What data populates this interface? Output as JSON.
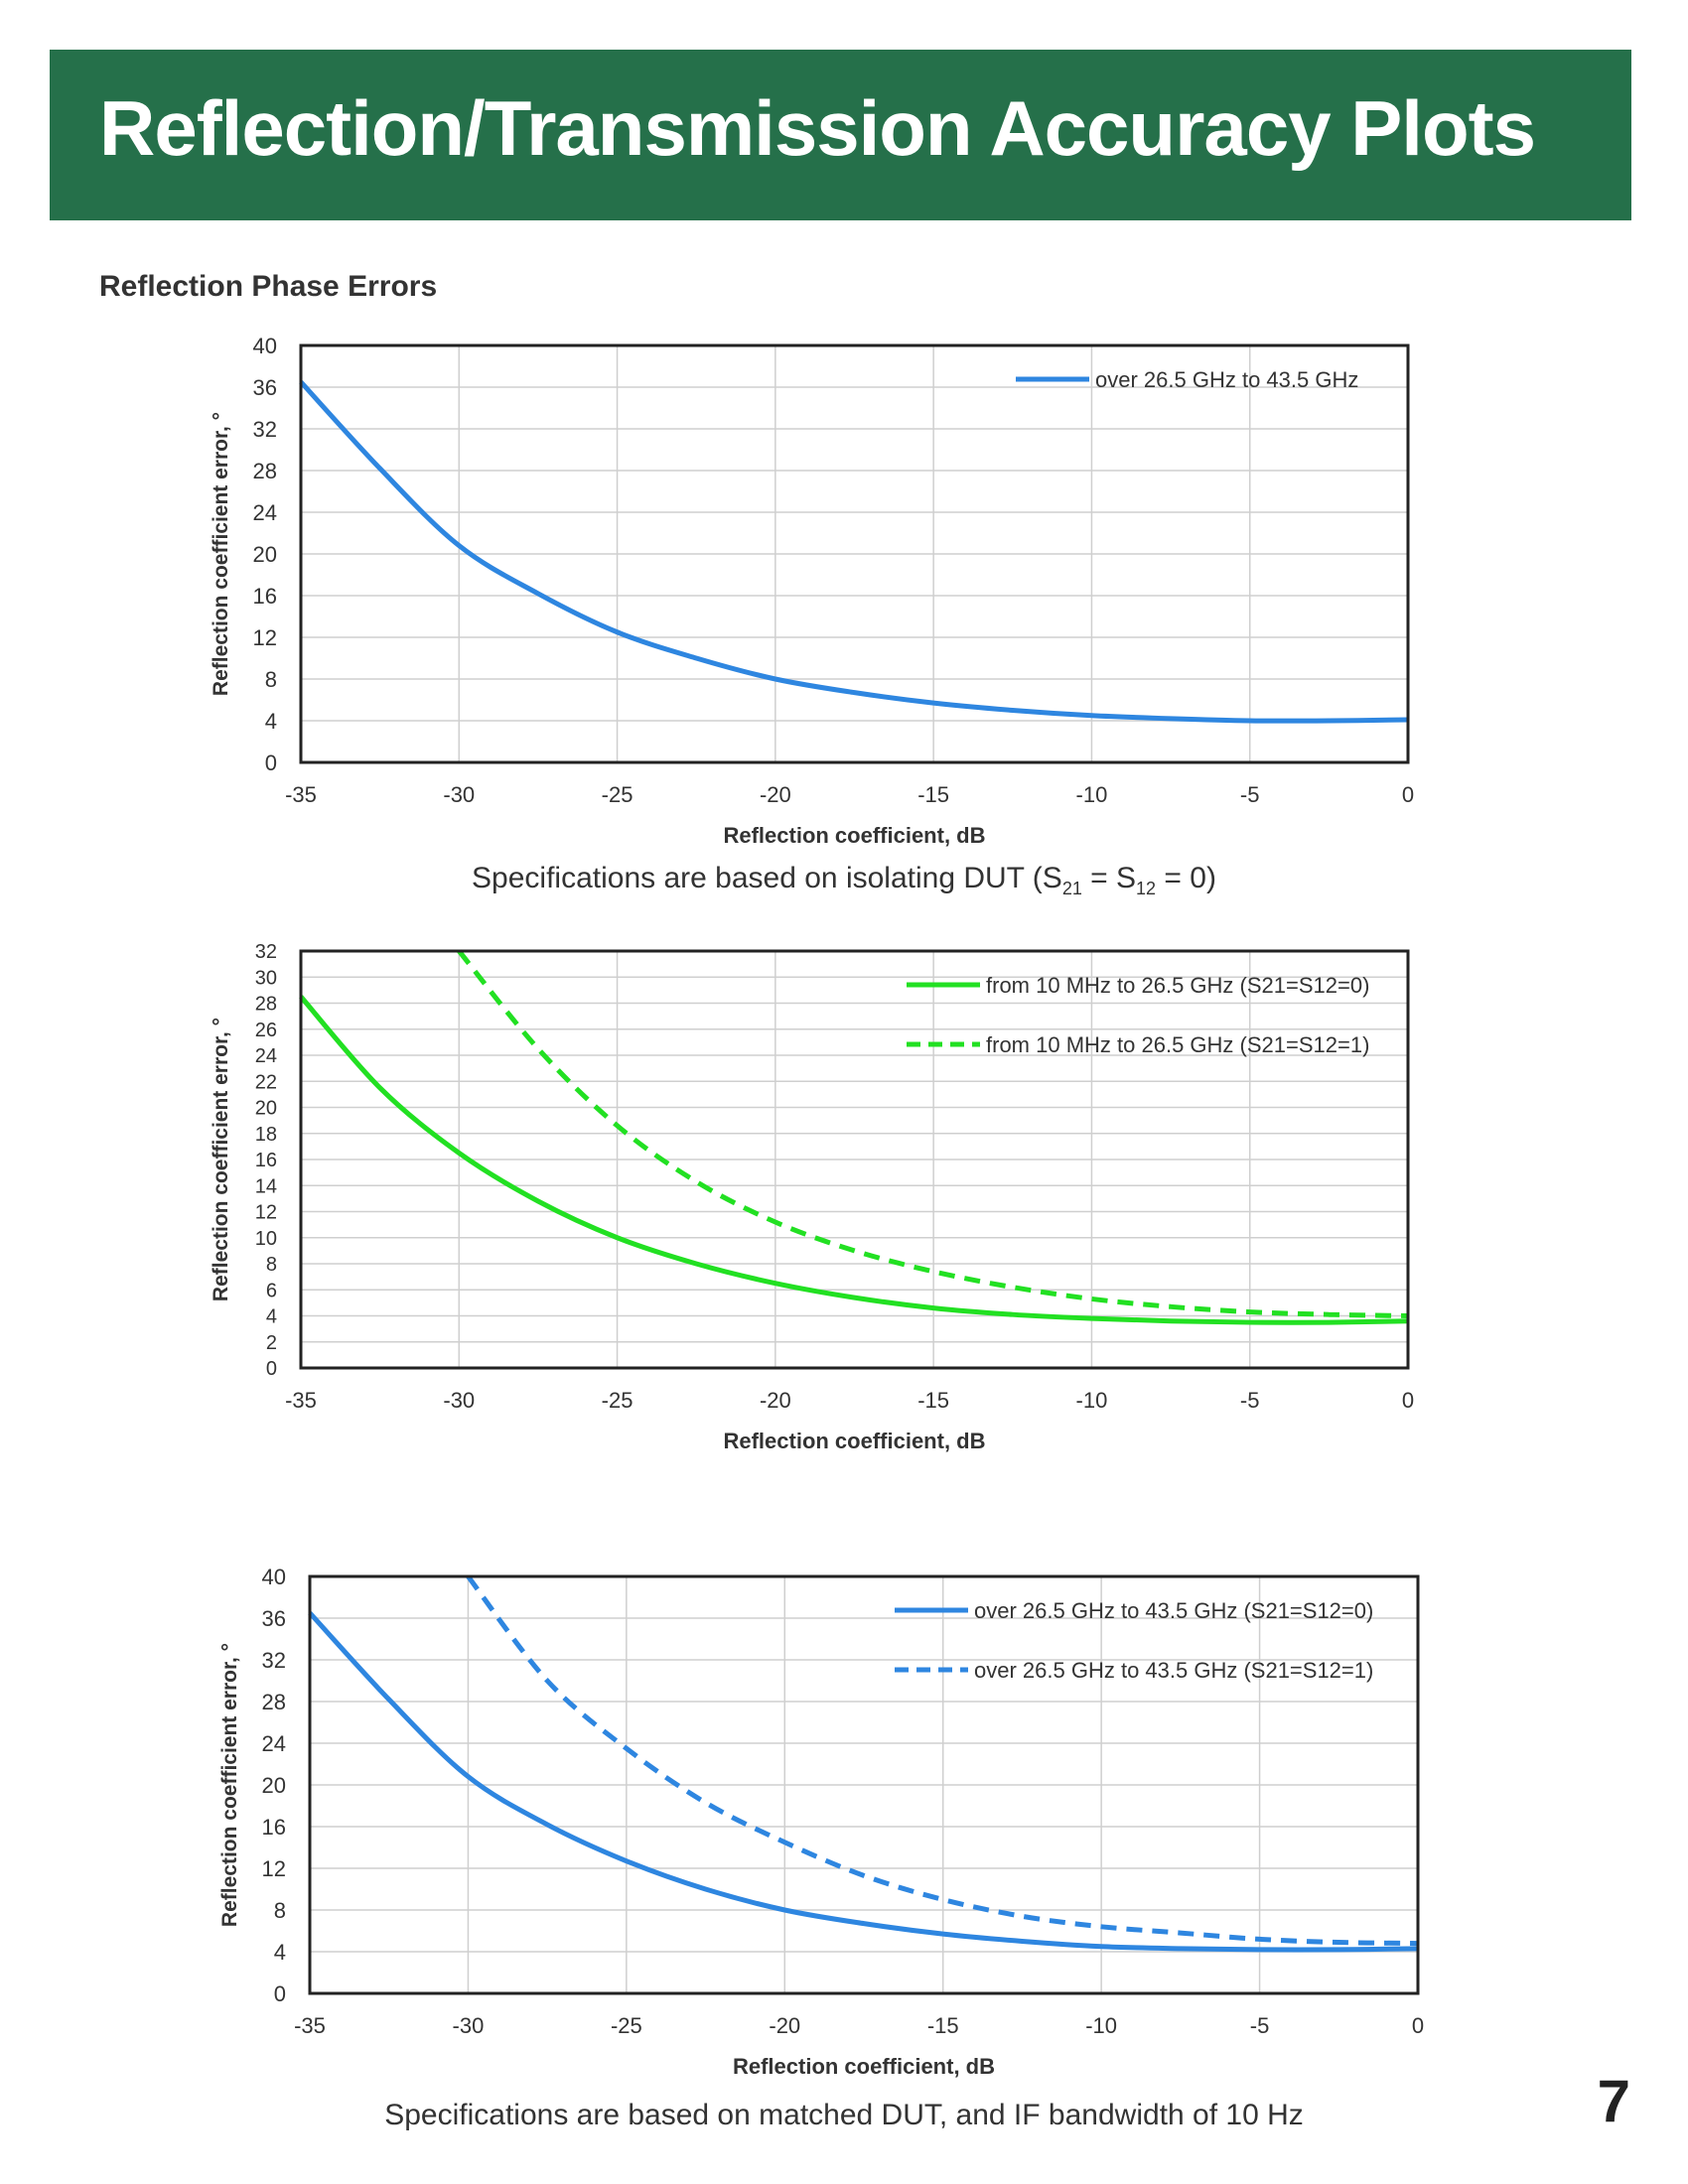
{
  "header": {
    "title": "Reflection/Transmission Accuracy Plots"
  },
  "section_title": "Reflection Phase Errors",
  "caption1": {
    "prefix": "Specifications are based on isolating DUT (S",
    "sub1": "21",
    "mid": " = S",
    "sub2": "12",
    "suffix": " = 0)"
  },
  "caption2": "Specifications are based on matched DUT, and IF bandwidth of 10 Hz",
  "page_number": "7",
  "colors": {
    "banner": "#25704a",
    "blue": "#2e86e0",
    "green": "#22e022"
  },
  "chart_data": [
    {
      "type": "line",
      "xlabel": "Reflection coefficient, dB",
      "ylabel": "Reflection coefficient error, °",
      "xlim": [
        -35,
        0
      ],
      "ylim": [
        0,
        40
      ],
      "xticks": [
        -35,
        -30,
        -25,
        -20,
        -15,
        -10,
        -5,
        0
      ],
      "yticks": [
        0,
        4,
        8,
        12,
        16,
        20,
        24,
        28,
        32,
        36,
        40
      ],
      "grid": true,
      "legend": "top-right",
      "series": [
        {
          "name": "over 26.5 GHz to 43.5 GHz",
          "style": "solid",
          "color": "#2e86e0",
          "x": [
            -35,
            -32.5,
            -30,
            -27.5,
            -25,
            -22.5,
            -20,
            -17.5,
            -15,
            -12.5,
            -10,
            -7.5,
            -5,
            -2.5,
            0
          ],
          "y": [
            36.5,
            28.2,
            20.8,
            16.2,
            12.5,
            10.0,
            8.0,
            6.7,
            5.7,
            5.0,
            4.5,
            4.2,
            4.0,
            4.0,
            4.1
          ]
        }
      ]
    },
    {
      "type": "line",
      "xlabel": "Reflection coefficient, dB",
      "ylabel": "Reflection coefficient error, °",
      "xlim": [
        -35,
        0
      ],
      "ylim": [
        0,
        32
      ],
      "xticks": [
        -35,
        -30,
        -25,
        -20,
        -15,
        -10,
        -5,
        0
      ],
      "yticks": [
        0,
        2,
        4,
        6,
        8,
        10,
        12,
        14,
        16,
        18,
        20,
        22,
        24,
        26,
        28,
        30,
        32
      ],
      "grid": true,
      "legend": "top-right",
      "series": [
        {
          "name": "from 10 MHz to 26.5 GHz (S21=S12=0)",
          "style": "solid",
          "color": "#22e022",
          "x": [
            -35,
            -32.5,
            -30,
            -27.5,
            -25,
            -22.5,
            -20,
            -17.5,
            -15,
            -12.5,
            -10,
            -7.5,
            -5,
            -2.5,
            0
          ],
          "y": [
            28.5,
            21.5,
            16.5,
            12.8,
            10.0,
            8.0,
            6.5,
            5.4,
            4.6,
            4.1,
            3.8,
            3.6,
            3.5,
            3.5,
            3.6
          ]
        },
        {
          "name": "from 10 MHz to 26.5 GHz (S21=S12=1)",
          "style": "dashed",
          "color": "#22e022",
          "x": [
            -30,
            -27.5,
            -25,
            -22.5,
            -20,
            -17.5,
            -15,
            -12.5,
            -10,
            -7.5,
            -5,
            -2.5,
            0
          ],
          "y": [
            32.0,
            24.5,
            18.6,
            14.3,
            11.2,
            9.0,
            7.4,
            6.2,
            5.3,
            4.7,
            4.3,
            4.1,
            4.0
          ]
        }
      ]
    },
    {
      "type": "line",
      "xlabel": "Reflection coefficient, dB",
      "ylabel": "Reflection coefficient error, °",
      "xlim": [
        -35,
        0
      ],
      "ylim": [
        0,
        40
      ],
      "xticks": [
        -35,
        -30,
        -25,
        -20,
        -15,
        -10,
        -5,
        0
      ],
      "yticks": [
        0,
        4,
        8,
        12,
        16,
        20,
        24,
        28,
        32,
        36,
        40
      ],
      "grid": true,
      "legend": "top-right",
      "series": [
        {
          "name": "over 26.5 GHz to 43.5 GHz (S21=S12=0)",
          "style": "solid",
          "color": "#2e86e0",
          "x": [
            -35,
            -32.5,
            -30,
            -27.5,
            -25,
            -22.5,
            -20,
            -17.5,
            -15,
            -12.5,
            -10,
            -7.5,
            -5,
            -2.5,
            0
          ],
          "y": [
            36.5,
            28.2,
            20.8,
            16.2,
            12.7,
            10.0,
            8.0,
            6.7,
            5.7,
            5.0,
            4.5,
            4.3,
            4.2,
            4.2,
            4.3
          ]
        },
        {
          "name": "over 26.5 GHz to 43.5 GHz (S21=S12=1)",
          "style": "dashed",
          "color": "#2e86e0",
          "x": [
            -30,
            -27.5,
            -25,
            -22.5,
            -20,
            -17.5,
            -15,
            -12.5,
            -10,
            -7.5,
            -5,
            -2.5,
            0
          ],
          "y": [
            40.0,
            30.0,
            23.5,
            18.3,
            14.5,
            11.3,
            9.0,
            7.4,
            6.4,
            5.8,
            5.2,
            4.9,
            4.8
          ]
        }
      ]
    }
  ]
}
